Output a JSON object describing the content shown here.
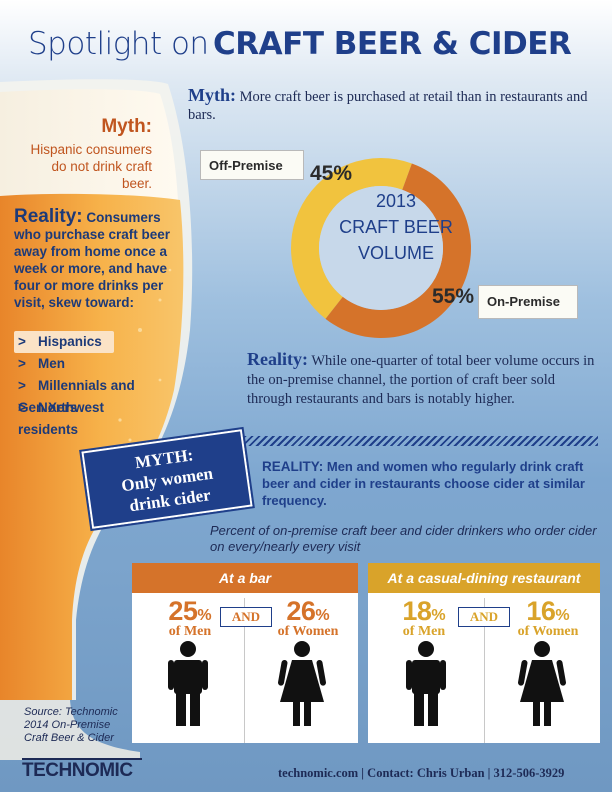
{
  "title": {
    "light": "Spotlight on",
    "bold": "CRAFT BEER & CIDER"
  },
  "left_myth": {
    "heading": "Myth:",
    "body": "Hispanic consumers do not drink craft beer."
  },
  "left_reality": {
    "heading": "Reality:",
    "body": "Consumers who purchase craft beer away from home once a week or more, and have four or more drinks per visit, skew toward:",
    "bullets": [
      {
        "marker": ">",
        "label": "Hispanics"
      },
      {
        "marker": ">",
        "label": "Men"
      },
      {
        "marker": ">",
        "label": "Millennials and Gen Xers"
      },
      {
        "marker": ">",
        "label": "Northwest residents"
      }
    ]
  },
  "top_myth": {
    "heading": "Myth:",
    "body": "More craft beer is purchased at retail than in restaurants and bars."
  },
  "chart_data": {
    "type": "pie",
    "title": "2013 CRAFT BEER VOLUME",
    "categories": [
      "Off-Premise",
      "On-Premise"
    ],
    "values": [
      45,
      55
    ],
    "labels": [
      "45%",
      "55%"
    ],
    "colors": [
      "#f1c33e",
      "#d5732a"
    ]
  },
  "chart_center": [
    "2013",
    "CRAFT BEER",
    "VOLUME"
  ],
  "top_reality": {
    "heading": "Reality:",
    "body": "While one-quarter of total beer volume occurs in the on-premise channel, the portion of craft beer sold through restaurants and bars is notably higher."
  },
  "sign": {
    "line1": "MYTH:",
    "line2": "Only women",
    "line3": "drink cider"
  },
  "mid_reality": {
    "heading": "REALITY:",
    "body": "Men and women who regularly drink craft beer and cider in restaurants choose cider at similar frequency."
  },
  "caption": "Percent of on-premise craft beer and cider drinkers who order cider on every/nearly every visit",
  "groups": [
    {
      "heading": "At a bar",
      "and": "AND",
      "stats": [
        {
          "num": "25",
          "pct": "%",
          "who": "of Men"
        },
        {
          "num": "26",
          "pct": "%",
          "who": "of Women"
        }
      ]
    },
    {
      "heading": "At a casual-dining restaurant",
      "and": "AND",
      "stats": [
        {
          "num": "18",
          "pct": "%",
          "who": "of Men"
        },
        {
          "num": "16",
          "pct": "%",
          "who": "of Women"
        }
      ]
    }
  ],
  "colors": {
    "orange": "#d5732a",
    "gold": "#d9a32a",
    "navy": "#1f3f8a"
  },
  "source": [
    "Source: Technomic",
    "2014 On-Premise",
    "Craft Beer & Cider"
  ],
  "logo": "TECHNOMIC",
  "footer": "technomic.com  |  Contact: Chris Urban  |  312-506-3929"
}
